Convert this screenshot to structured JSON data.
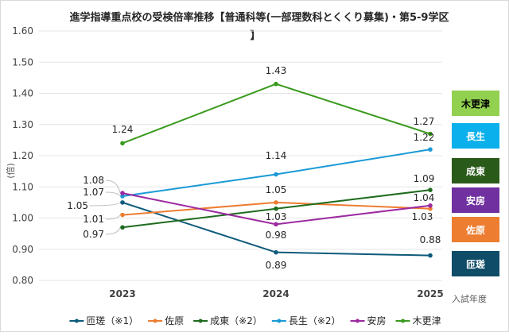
{
  "chart_data": {
    "type": "line",
    "title_line1": "進学指導重点校の受検倍率推移【普通科等(一部理数科とくくり募集)・第5-9学区",
    "title_line2": "】",
    "xlabel": "入試年度",
    "ylabel": "(倍)",
    "categories": [
      "2023",
      "2024",
      "2025"
    ],
    "ylim": [
      0.8,
      1.6
    ],
    "yticks": [
      "0.80",
      "0.90",
      "1.00",
      "1.10",
      "1.20",
      "1.30",
      "1.40",
      "1.50",
      "1.60"
    ],
    "grid": true,
    "legend_position": "bottom",
    "series": [
      {
        "name": "匝瑳（※1）",
        "short": "匝瑳",
        "color": "#0e5a7a",
        "box_color": "#0f4c68",
        "box_text_color": "#ffffff",
        "values": [
          1.05,
          0.89,
          0.88
        ],
        "labels": [
          "1.05",
          "0.89",
          "0.88"
        ]
      },
      {
        "name": "佐原",
        "short": "佐原",
        "color": "#ed7d31",
        "box_color": "#ed7d31",
        "box_text_color": "#ffffff",
        "values": [
          1.01,
          1.05,
          1.03
        ],
        "labels": [
          "1.01",
          "1.05",
          "1.03"
        ]
      },
      {
        "name": "成東（※2）",
        "short": "成東",
        "color": "#1e6b1e",
        "box_color": "#2a5a1a",
        "box_text_color": "#ffffff",
        "values": [
          0.97,
          1.03,
          1.09
        ],
        "labels": [
          "0.97",
          "1.03",
          "1.09"
        ]
      },
      {
        "name": "長生（※2）",
        "short": "長生",
        "color": "#1a9ad6",
        "box_color": "#0ab0ec",
        "box_text_color": "#ffffff",
        "values": [
          1.07,
          1.14,
          1.22
        ],
        "labels": [
          "1.07",
          "1.14",
          "1.22"
        ]
      },
      {
        "name": "安房",
        "short": "安房",
        "color": "#9c2aa0",
        "box_color": "#7030a0",
        "box_text_color": "#ffffff",
        "values": [
          1.08,
          0.98,
          1.04
        ],
        "labels": [
          "1.08",
          "0.98",
          "1.04"
        ]
      },
      {
        "name": "木更津",
        "short": "木更津",
        "color": "#3a9a1e",
        "box_color": "#92d050",
        "box_text_color": "#000000",
        "values": [
          1.24,
          1.43,
          1.27
        ],
        "labels": [
          "1.24",
          "1.43",
          "1.27"
        ]
      }
    ]
  }
}
